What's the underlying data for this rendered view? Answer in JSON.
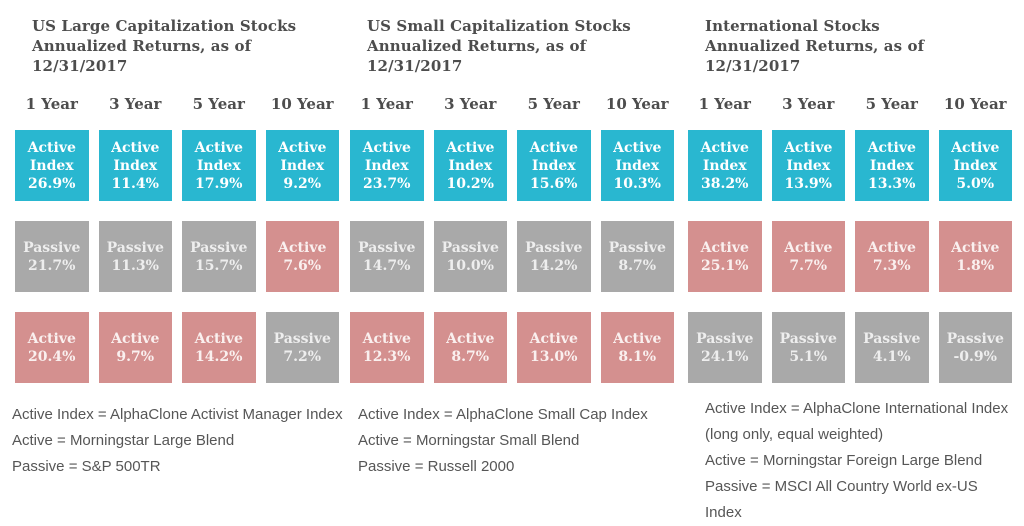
{
  "colors": {
    "active_index": "#29b7d0",
    "passive": "#a9a9a9",
    "active": "#d4908f",
    "heading_text": "#4d4d4d"
  },
  "panels": [
    {
      "title_line1": "US Large Capitalization Stocks",
      "title_line2": "Annualized Returns, as of 12/31/2017",
      "columns": [
        "1 Year",
        "3 Year",
        "5 Year",
        "10 Year"
      ],
      "rows": [
        [
          {
            "label": "Active Index",
            "value": "26.9%",
            "type": "active-index"
          },
          {
            "label": "Active Index",
            "value": "11.4%",
            "type": "active-index"
          },
          {
            "label": "Active Index",
            "value": "17.9%",
            "type": "active-index"
          },
          {
            "label": "Active Index",
            "value": "9.2%",
            "type": "active-index"
          }
        ],
        [
          {
            "label": "Passive",
            "value": "21.7%",
            "type": "passive"
          },
          {
            "label": "Passive",
            "value": "11.3%",
            "type": "passive"
          },
          {
            "label": "Passive",
            "value": "15.7%",
            "type": "passive"
          },
          {
            "label": "Active",
            "value": "7.6%",
            "type": "active"
          }
        ],
        [
          {
            "label": "Active",
            "value": "20.4%",
            "type": "active"
          },
          {
            "label": "Active",
            "value": "9.7%",
            "type": "active"
          },
          {
            "label": "Active",
            "value": "14.2%",
            "type": "active"
          },
          {
            "label": "Passive",
            "value": "7.2%",
            "type": "passive"
          }
        ]
      ],
      "footnotes": [
        "Active Index = AlphaClone Activist Manager Index",
        "Active = Morningstar Large Blend",
        "Passive = S&P 500TR"
      ]
    },
    {
      "title_line1": "US Small Capitalization Stocks",
      "title_line2": "Annualized Returns, as of 12/31/2017",
      "columns": [
        "1 Year",
        "3 Year",
        "5 Year",
        "10 Year"
      ],
      "rows": [
        [
          {
            "label": "Active Index",
            "value": "23.7%",
            "type": "active-index"
          },
          {
            "label": "Active Index",
            "value": "10.2%",
            "type": "active-index"
          },
          {
            "label": "Active Index",
            "value": "15.6%",
            "type": "active-index"
          },
          {
            "label": "Active Index",
            "value": "10.3%",
            "type": "active-index"
          }
        ],
        [
          {
            "label": "Passive",
            "value": "14.7%",
            "type": "passive"
          },
          {
            "label": "Passive",
            "value": "10.0%",
            "type": "passive"
          },
          {
            "label": "Passive",
            "value": "14.2%",
            "type": "passive"
          },
          {
            "label": "Passive",
            "value": "8.7%",
            "type": "passive"
          }
        ],
        [
          {
            "label": "Active",
            "value": "12.3%",
            "type": "active"
          },
          {
            "label": "Active",
            "value": "8.7%",
            "type": "active"
          },
          {
            "label": "Active",
            "value": "13.0%",
            "type": "active"
          },
          {
            "label": "Active",
            "value": "8.1%",
            "type": "active"
          }
        ]
      ],
      "footnotes": [
        "Active Index = AlphaClone Small Cap Index",
        "Active = Morningstar Small Blend",
        "Passive = Russell 2000"
      ]
    },
    {
      "title_line1": "International Stocks",
      "title_line2": "Annualized Returns, as of 12/31/2017",
      "columns": [
        "1 Year",
        "3 Year",
        "5 Year",
        "10 Year"
      ],
      "rows": [
        [
          {
            "label": "Active Index",
            "value": "38.2%",
            "type": "active-index"
          },
          {
            "label": "Active Index",
            "value": "13.9%",
            "type": "active-index"
          },
          {
            "label": "Active Index",
            "value": "13.3%",
            "type": "active-index"
          },
          {
            "label": "Active Index",
            "value": "5.0%",
            "type": "active-index"
          }
        ],
        [
          {
            "label": "Active",
            "value": "25.1%",
            "type": "active"
          },
          {
            "label": "Active",
            "value": "7.7%",
            "type": "active"
          },
          {
            "label": "Active",
            "value": "7.3%",
            "type": "active"
          },
          {
            "label": "Active",
            "value": "1.8%",
            "type": "active"
          }
        ],
        [
          {
            "label": "Passive",
            "value": "24.1%",
            "type": "passive"
          },
          {
            "label": "Passive",
            "value": "5.1%",
            "type": "passive"
          },
          {
            "label": "Passive",
            "value": "4.1%",
            "type": "passive"
          },
          {
            "label": "Passive",
            "value": "-0.9%",
            "type": "passive"
          }
        ]
      ],
      "footnotes": [
        "Active Index = AlphaClone International Index",
        "(long only, equal weighted)",
        "Active = Morningstar Foreign Large Blend",
        "Passive = MSCI All Country World ex-US Index"
      ]
    }
  ],
  "chart_data": [
    {
      "type": "table",
      "title": "US Large Capitalization Stocks Annualized Returns, as of 12/31/2017",
      "categories": [
        "1 Year",
        "3 Year",
        "5 Year",
        "10 Year"
      ],
      "series": [
        {
          "name": "Active Index (AlphaClone Activist Manager Index)",
          "values": [
            26.9,
            11.4,
            17.9,
            9.2
          ]
        },
        {
          "name": "Passive (S&P 500TR)",
          "values": [
            21.7,
            11.3,
            15.7,
            7.2
          ]
        },
        {
          "name": "Active (Morningstar Large Blend)",
          "values": [
            20.4,
            9.7,
            14.2,
            7.6
          ]
        }
      ],
      "layout": "cells ranked top-to-bottom by value within each column",
      "unit": "%"
    },
    {
      "type": "table",
      "title": "US Small Capitalization Stocks Annualized Returns, as of 12/31/2017",
      "categories": [
        "1 Year",
        "3 Year",
        "5 Year",
        "10 Year"
      ],
      "series": [
        {
          "name": "Active Index (AlphaClone Small Cap Index)",
          "values": [
            23.7,
            10.2,
            15.6,
            10.3
          ]
        },
        {
          "name": "Passive (Russell 2000)",
          "values": [
            14.7,
            10.0,
            14.2,
            8.7
          ]
        },
        {
          "name": "Active (Morningstar Small Blend)",
          "values": [
            12.3,
            8.7,
            13.0,
            8.1
          ]
        }
      ],
      "layout": "cells ranked top-to-bottom by value within each column",
      "unit": "%"
    },
    {
      "type": "table",
      "title": "International Stocks Annualized Returns, as of 12/31/2017",
      "categories": [
        "1 Year",
        "3 Year",
        "5 Year",
        "10 Year"
      ],
      "series": [
        {
          "name": "Active Index (AlphaClone International Index, long only, equal weighted)",
          "values": [
            38.2,
            13.9,
            13.3,
            5.0
          ]
        },
        {
          "name": "Active (Morningstar Foreign Large Blend)",
          "values": [
            25.1,
            7.7,
            7.3,
            1.8
          ]
        },
        {
          "name": "Passive (MSCI All Country World ex-US Index)",
          "values": [
            24.1,
            5.1,
            4.1,
            -0.9
          ]
        }
      ],
      "layout": "cells ranked top-to-bottom by value within each column",
      "unit": "%"
    }
  ]
}
